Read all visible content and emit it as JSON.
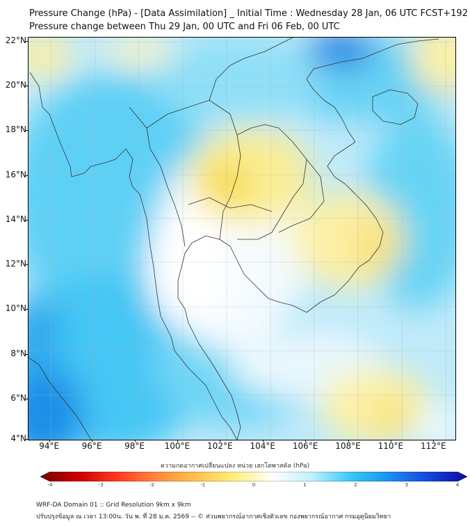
{
  "title_line1": "Pressure Change (hPa) - [Data Assimilation] _ Initial Time : Wednesday 28 Jan, 06 UTC FCST+192",
  "title_line2": "Pressure change between Thu 29 Jan, 00 UTC and Fri 06 Feb, 00 UTC",
  "map": {
    "lat_labels": [
      "22°N",
      "20°N",
      "18°N",
      "16°N",
      "14°N",
      "12°N",
      "10°N",
      "8°N",
      "6°N",
      "4°N"
    ],
    "lon_labels": [
      "94°E",
      "96°E",
      "98°E",
      "100°E",
      "102°E",
      "104°E",
      "106°E",
      "108°E",
      "110°E",
      "112°E"
    ],
    "lat_values": [
      22,
      20,
      18,
      16,
      14,
      12,
      10,
      8,
      6,
      4
    ],
    "lon_values": [
      94,
      96,
      98,
      100,
      102,
      104,
      106,
      108,
      110,
      112
    ],
    "lat_range": [
      4,
      22
    ],
    "lon_range": [
      93,
      113
    ]
  },
  "colorbar": {
    "title": "ความกดอากาศเปลี่ยนแปลง หน่วย เฮกโตพาสคัล (hPa)",
    "tick_labels": [
      "-4",
      "-3",
      "-2",
      "-1",
      "0",
      "1",
      "2",
      "3",
      "4"
    ],
    "range": [
      -4,
      4
    ],
    "colors": [
      "#7a0000",
      "#cc0000",
      "#ff3b1f",
      "#ff8a3d",
      "#ffc14d",
      "#fff07a",
      "#ffffff",
      "#bff0ff",
      "#38c8f5",
      "#1a8ff0",
      "#1546e0",
      "#0a0aa0"
    ]
  },
  "footer_line1": "WRF-DA Domain 01 :: Grid Resolution 9km x 9km",
  "footer_line2": "ปรับปรุงข้อมูล ณ เวลา 13:00น. วัน พ. ที่ 28 ม.ค. 2569 -- © ส่วนพยากรณ์อากาศเชิงตัวเลข กองพยากรณ์อากาศ กรมอุตุนิยมวิทยา"
}
